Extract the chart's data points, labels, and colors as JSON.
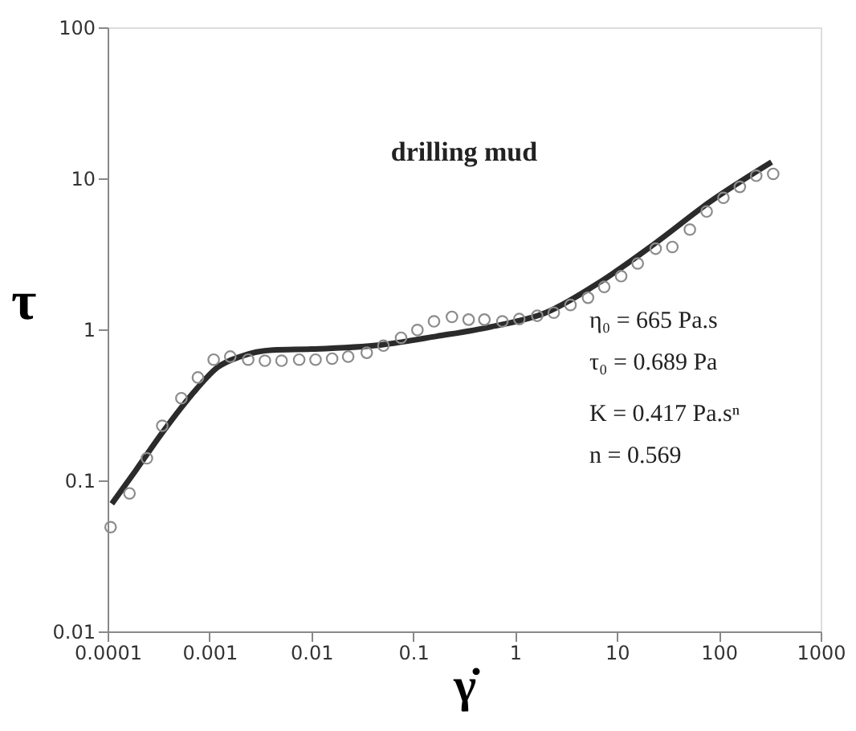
{
  "chart_data": {
    "type": "scatter",
    "xlabel": "γ̇",
    "ylabel": "τ",
    "log": "xy",
    "grid": false,
    "xlim": [
      0.0001,
      1000
    ],
    "xticks": [
      0.0001,
      0.001,
      0.01,
      0.1,
      1,
      10,
      100,
      1000
    ],
    "ylim": [
      0.01,
      100
    ],
    "yticks": [
      0.01,
      0.1,
      1,
      10,
      100
    ],
    "annotations": [
      "drilling mud",
      "η₀ = 665 Pa.s",
      "τ₀ = 0.689 Pa",
      "K = 0.417 Pa.sⁿ",
      "n = 0.569"
    ],
    "series": [
      {
        "marker": "circle",
        "color": "#8c8c8c",
        "x": [
          0.000107,
          0.000164,
          0.000243,
          0.000344,
          0.00053,
          0.00077,
          0.0011,
          0.0016,
          0.0024,
          0.0035,
          0.0051,
          0.0076,
          0.011,
          0.016,
          0.023,
          0.035,
          0.051,
          0.076,
          0.11,
          0.16,
          0.24,
          0.35,
          0.5,
          0.75,
          1.1,
          1.65,
          2.4,
          3.5,
          5.2,
          7.5,
          11,
          16,
          24,
          35,
          52,
          76,
          111,
          161,
          233,
          342
        ],
        "values": [
          0.049,
          0.082,
          0.14,
          0.23,
          0.35,
          0.48,
          0.63,
          0.66,
          0.63,
          0.62,
          0.62,
          0.63,
          0.63,
          0.64,
          0.66,
          0.7,
          0.78,
          0.88,
          0.99,
          1.13,
          1.21,
          1.16,
          1.16,
          1.13,
          1.17,
          1.23,
          1.29,
          1.45,
          1.62,
          1.91,
          2.25,
          2.73,
          3.42,
          3.51,
          4.58,
          6.03,
          7.43,
          8.78,
          10.4,
          10.7
        ]
      },
      {
        "type": "line",
        "marker": "none",
        "line_style": "solid",
        "color": "#2b2b2b",
        "x": [
          0.00011,
          0.00019,
          0.00035,
          0.00074,
          0.0012,
          0.002,
          0.0042,
          0.01,
          0.049,
          0.17,
          0.58,
          2.0,
          6.9,
          23.8,
          81,
          330
        ],
        "values": [
          0.07,
          0.117,
          0.21,
          0.4,
          0.56,
          0.66,
          0.73,
          0.74,
          0.79,
          0.9,
          1.04,
          1.29,
          2.07,
          3.72,
          6.95,
          12.8
        ]
      }
    ]
  }
}
